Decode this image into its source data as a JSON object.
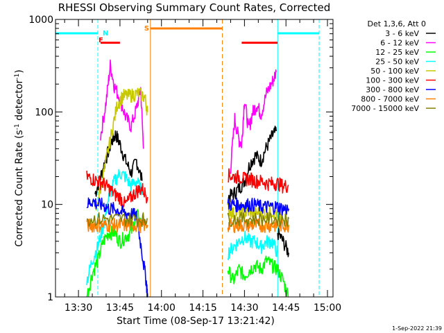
{
  "chart_data": {
    "type": "line",
    "title": "RHESSI Observing Summary Count Rates, Corrected",
    "xlabel": "Start Time (08-Sep-17 13:21:42)",
    "ylabel": "Corrected Count Rate (s",
    "ylabel_sup1": "-1",
    "ylabel_mid": " detector",
    "ylabel_sup2": "-1",
    "ylabel_end": ")",
    "y_scale": "log",
    "ylim": [
      1,
      1000
    ],
    "xlim": [
      "13:21:42",
      "15:02:00"
    ],
    "x_ticks": [
      "13:30",
      "13:45",
      "14:00",
      "14:15",
      "14:30",
      "14:45",
      "15:00"
    ],
    "y_ticks": [
      "1",
      "10",
      "100",
      "1000"
    ],
    "legend_title": "Det 1,3,6, Att 0",
    "legend_position": "right",
    "footer": "1-Sep-2022 21:39",
    "series": [
      {
        "name": "3 - 6 keV",
        "color": "#000000",
        "segments": [
          {
            "x": [
              "13:36:00",
              "13:38:00",
              "13:40:00",
              "13:42:00",
              "13:43:30",
              "13:45:00",
              "13:47:00",
              "13:49:00",
              "13:51:00",
              "13:53:00"
            ],
            "y": [
              13,
              20,
              32,
              48,
              58,
              45,
              30,
              22,
              30,
              18
            ]
          },
          {
            "x": [
              "14:24:00",
              "14:26:00",
              "14:28:00",
              "14:30:00",
              "14:32:00",
              "14:34:00",
              "14:36:00",
              "14:38:00",
              "14:40:00",
              "14:41:30"
            ],
            "y": [
              12,
              13,
              15,
              18,
              28,
              34,
              30,
              42,
              55,
              62
            ]
          },
          {
            "x": [
              "14:42:00",
              "14:44:00",
              "14:46:00"
            ],
            "y": [
              5,
              4,
              3
            ]
          }
        ]
      },
      {
        "name": "6 - 12 keV",
        "color": "#ff00ff",
        "segments": [
          {
            "x": [
              "13:38:00",
              "13:40:00",
              "13:41:30",
              "13:43:00",
              "13:45:00",
              "13:47:00",
              "13:49:00",
              "13:51:00",
              "13:52:30",
              "13:53:30"
            ],
            "y": [
              55,
              130,
              320,
              190,
              140,
              90,
              70,
              110,
              180,
              40
            ]
          },
          {
            "x": [
              "14:25:00",
              "14:26:30",
              "14:28:00",
              "14:29:00",
              "14:30:00",
              "14:31:30",
              "14:33:00",
              "14:34:30",
              "14:36:00",
              "14:38:00",
              "14:40:00",
              "14:41:30"
            ],
            "y": [
              25,
              85,
              50,
              45,
              140,
              65,
              100,
              120,
              95,
              160,
              210,
              270
            ]
          }
        ]
      },
      {
        "name": "12 - 25 keV",
        "color": "#00ff00",
        "segments": [
          {
            "x": [
              "13:33:00",
              "13:35:00",
              "13:37:00",
              "13:39:00",
              "13:41:00",
              "13:43:00",
              "13:45:00",
              "13:47:00",
              "13:49:00",
              "13:51:00",
              "13:53:00"
            ],
            "y": [
              1,
              1.8,
              2.5,
              4,
              5,
              5,
              4,
              4.5,
              5,
              8,
              6
            ]
          },
          {
            "x": [
              "14:24:00",
              "14:26:00",
              "14:28:00",
              "14:30:00",
              "14:32:00",
              "14:34:00",
              "14:36:00",
              "14:38:00",
              "14:40:00",
              "14:42:00",
              "14:44:00",
              "14:46:00"
            ],
            "y": [
              2,
              1.5,
              2,
              1.7,
              2,
              2.2,
              2,
              2.5,
              2.2,
              2,
              1.5,
              1
            ]
          }
        ]
      },
      {
        "name": "25 - 50 keV",
        "color": "#00ffff",
        "segments": [
          {
            "x": [
              "13:33:00",
              "13:35:00",
              "13:37:00",
              "13:39:00",
              "13:41:00",
              "13:43:00",
              "13:45:00",
              "13:47:00",
              "13:49:00",
              "13:51:00",
              "13:53:00"
            ],
            "y": [
              1.5,
              2.5,
              3.5,
              6,
              12,
              18,
              22,
              20,
              16,
              18,
              14
            ]
          },
          {
            "x": [
              "14:24:00",
              "14:26:00",
              "14:28:00",
              "14:30:00",
              "14:32:00",
              "14:34:00",
              "14:36:00",
              "14:38:00",
              "14:40:00",
              "14:42:00"
            ],
            "y": [
              3,
              3.5,
              4,
              4.5,
              4,
              4,
              3.5,
              4,
              4,
              3
            ]
          }
        ]
      },
      {
        "name": "50 - 100 keV",
        "color": "#c8c800",
        "segments": [
          {
            "x": [
              "13:36:00",
              "13:38:00",
              "13:40:00",
              "13:42:00",
              "13:44:00",
              "13:46:00",
              "13:48:00",
              "13:50:00",
              "13:52:00",
              "13:54:00",
              "13:55:00"
            ],
            "y": [
              8,
              15,
              30,
              60,
              120,
              150,
              150,
              155,
              160,
              145,
              100
            ]
          },
          {
            "x": [
              "14:24:00",
              "14:26:00",
              "14:28:00",
              "14:30:00",
              "14:32:00",
              "14:34:00",
              "14:36:00",
              "14:38:00",
              "14:40:00",
              "14:42:00",
              "14:44:00"
            ],
            "y": [
              9,
              8,
              8.5,
              8,
              8.5,
              8,
              8.5,
              8,
              8.5,
              8,
              7
            ]
          }
        ]
      },
      {
        "name": "100 - 300 keV",
        "color": "#ff0000",
        "segments": [
          {
            "x": [
              "13:33:00",
              "13:35:00",
              "13:37:00",
              "13:39:00",
              "13:41:00",
              "13:43:00",
              "13:45:00",
              "13:47:00",
              "13:49:00",
              "13:51:00",
              "13:53:00",
              "13:55:00"
            ],
            "y": [
              20,
              19,
              18,
              17,
              15,
              13,
              12,
              10,
              12,
              14,
              15,
              12
            ]
          },
          {
            "x": [
              "14:24:00",
              "14:26:00",
              "14:28:00",
              "14:30:00",
              "14:32:00",
              "14:34:00",
              "14:36:00",
              "14:38:00",
              "14:40:00",
              "14:42:00",
              "14:44:00",
              "14:46:00"
            ],
            "y": [
              21,
              20,
              20,
              19,
              19,
              18,
              18,
              17,
              17,
              17,
              16,
              16
            ]
          }
        ]
      },
      {
        "name": "300 - 800 keV",
        "color": "#0000ff",
        "segments": [
          {
            "x": [
              "13:33:00",
              "13:35:00",
              "13:37:00",
              "13:39:00",
              "13:41:00",
              "13:43:00",
              "13:45:00",
              "13:47:00",
              "13:49:00",
              "13:51:00",
              "13:53:00",
              "13:54:30",
              "13:55:00"
            ],
            "y": [
              10,
              11,
              10,
              10,
              9,
              9,
              8.5,
              8,
              8,
              7.5,
              3,
              1.5,
              1
            ]
          },
          {
            "x": [
              "14:24:00",
              "14:26:00",
              "14:28:00",
              "14:30:00",
              "14:32:00",
              "14:34:00",
              "14:36:00",
              "14:38:00",
              "14:40:00",
              "14:42:00",
              "14:44:00",
              "14:46:00"
            ],
            "y": [
              10,
              10,
              10,
              10,
              10,
              10,
              9.5,
              9.5,
              9.5,
              9.5,
              9,
              9
            ]
          }
        ]
      },
      {
        "name": "800 - 7000 keV",
        "color": "#ff8000",
        "segments": [
          {
            "x": [
              "13:33:00",
              "13:35:00",
              "13:37:00",
              "13:39:00",
              "13:41:00",
              "13:43:00",
              "13:45:00",
              "13:47:00",
              "13:49:00",
              "13:51:00",
              "13:53:00",
              "13:55:00"
            ],
            "y": [
              6,
              6,
              6,
              6,
              6,
              6,
              6,
              6,
              6,
              6,
              6,
              6
            ]
          },
          {
            "x": [
              "14:24:00",
              "14:26:00",
              "14:28:00",
              "14:30:00",
              "14:32:00",
              "14:34:00",
              "14:36:00",
              "14:38:00",
              "14:40:00",
              "14:42:00",
              "14:44:00",
              "14:46:00"
            ],
            "y": [
              6,
              6,
              6,
              6,
              6,
              6,
              6,
              6,
              6,
              6,
              6,
              6
            ]
          }
        ]
      },
      {
        "name": "7000 - 15000 keV",
        "color": "#808000",
        "segments": [
          {
            "x": [
              "13:33:00",
              "13:37:00",
              "13:41:00",
              "13:45:00",
              "13:49:00",
              "13:53:00",
              "13:55:00"
            ],
            "y": [
              7,
              7,
              7,
              7,
              7,
              7,
              7
            ]
          },
          {
            "x": [
              "14:24:00",
              "14:28:00",
              "14:32:00",
              "14:36:00",
              "14:40:00",
              "14:44:00",
              "14:46:00"
            ],
            "y": [
              7,
              7,
              7,
              7,
              7,
              7,
              7
            ]
          }
        ]
      }
    ],
    "annotations": {
      "night_periods": [
        {
          "start": "13:21:42",
          "end": "13:37:00",
          "color": "#00ffff"
        },
        {
          "start": "14:42:00",
          "end": "14:57:00",
          "color": "#00ffff"
        }
      ],
      "saa_period": {
        "start": "13:56:00",
        "end": "14:22:00",
        "color": "#ff8000"
      },
      "flare_bars": [
        {
          "start": "13:38:00",
          "end": "13:45:00",
          "level": 560,
          "color": "#ff0000"
        },
        {
          "start": "14:29:00",
          "end": "14:42:00",
          "level": 560,
          "color": "#ff0000"
        }
      ],
      "labels": [
        {
          "text": "N",
          "time": "13:38:00",
          "color": "#00ffff"
        },
        {
          "text": "F",
          "time": "13:36:30",
          "color": "#ff0000"
        },
        {
          "text": "S",
          "time": "13:53:00",
          "color": "#ff8000"
        }
      ]
    }
  }
}
